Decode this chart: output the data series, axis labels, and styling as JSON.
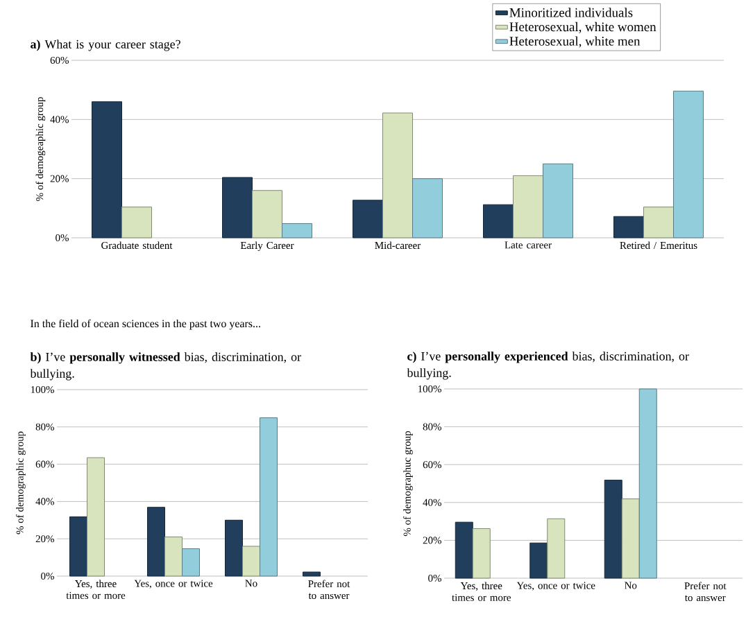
{
  "chart_data": [
    {
      "type": "bar",
      "title": "**a)** What is your career stage?",
      "ylabel": "% of demogeaphic group",
      "categories": [
        "Graduate student",
        "Early Career",
        "Mid-career",
        "Late career",
        "Retired / Emeritus"
      ],
      "series": [
        {
          "name": "Minoritized individuals",
          "color": "#213f5d",
          "values": [
            46.0,
            20.4,
            12.7,
            11.2,
            7.2
          ]
        },
        {
          "name": "Heterosexual, white women",
          "color": "#d7e4bd",
          "values": [
            10.4,
            16.0,
            42.2,
            21.0,
            10.4
          ]
        },
        {
          "name": "Heterosexual, white men",
          "color": "#92cddc",
          "values": [
            null,
            4.8,
            20.0,
            25.0,
            49.6
          ]
        }
      ],
      "ylim": [
        0,
        60
      ],
      "yticks": [
        {
          "value": 0,
          "label": "0%"
        },
        {
          "value": 20,
          "label": "20%"
        },
        {
          "value": 40,
          "label": "40%"
        },
        {
          "value": 60,
          "label": "60%"
        }
      ],
      "grid": "y",
      "legend": "top right"
    },
    {
      "type": "bar",
      "title": "**b)** I’ve **personally witnessed** bias, discrimination, or bullying.",
      "ylabel": "% of demographic group",
      "annotations": [
        "In the field of ocean sciences in the past two years..."
      ],
      "categories": [
        "Yes, three times or more",
        "Yes, once or twice",
        "No",
        "Prefer not to answer"
      ],
      "series": [
        {
          "color": "#213f5d",
          "values": [
            31.8,
            36.9,
            30.0,
            2.2
          ]
        },
        {
          "color": "#d7e4bd",
          "values": [
            63.5,
            21.0,
            16.0,
            null
          ]
        },
        {
          "color": "#92cddc",
          "values": [
            null,
            14.7,
            84.9,
            null
          ]
        }
      ],
      "ylim": [
        0,
        100
      ],
      "yticks": [
        {
          "value": 0,
          "label": "0%"
        },
        {
          "value": 20,
          "label": "20%"
        },
        {
          "value": 40,
          "label": "40%"
        },
        {
          "value": 60,
          "label": "60%"
        },
        {
          "value": 80,
          "label": "80%"
        },
        {
          "value": 100,
          "label": "100%"
        }
      ],
      "grid": "y"
    },
    {
      "type": "bar",
      "title": "**c)** I’ve **personally experienced** bias, discrimination, or bullying.",
      "ylabel": "% of demographuc group",
      "categories": [
        "Yes, three times or more",
        "Yes, once or twice",
        "No",
        "Prefer not to answer"
      ],
      "series": [
        {
          "color": "#213f5d",
          "values": [
            29.6,
            18.6,
            51.8,
            null
          ]
        },
        {
          "color": "#d7e4bd",
          "values": [
            26.2,
            31.4,
            41.9,
            null
          ]
        },
        {
          "color": "#92cddc",
          "values": [
            null,
            null,
            100,
            null
          ]
        }
      ],
      "ylim": [
        0,
        100
      ],
      "yticks": [
        {
          "value": 0,
          "label": "0%"
        },
        {
          "value": 20,
          "label": "20%"
        },
        {
          "value": 40,
          "label": "40%"
        },
        {
          "value": 60,
          "label": "60%"
        },
        {
          "value": 80,
          "label": "80%"
        },
        {
          "value": 100,
          "label": "100%"
        }
      ],
      "grid": "y"
    }
  ]
}
